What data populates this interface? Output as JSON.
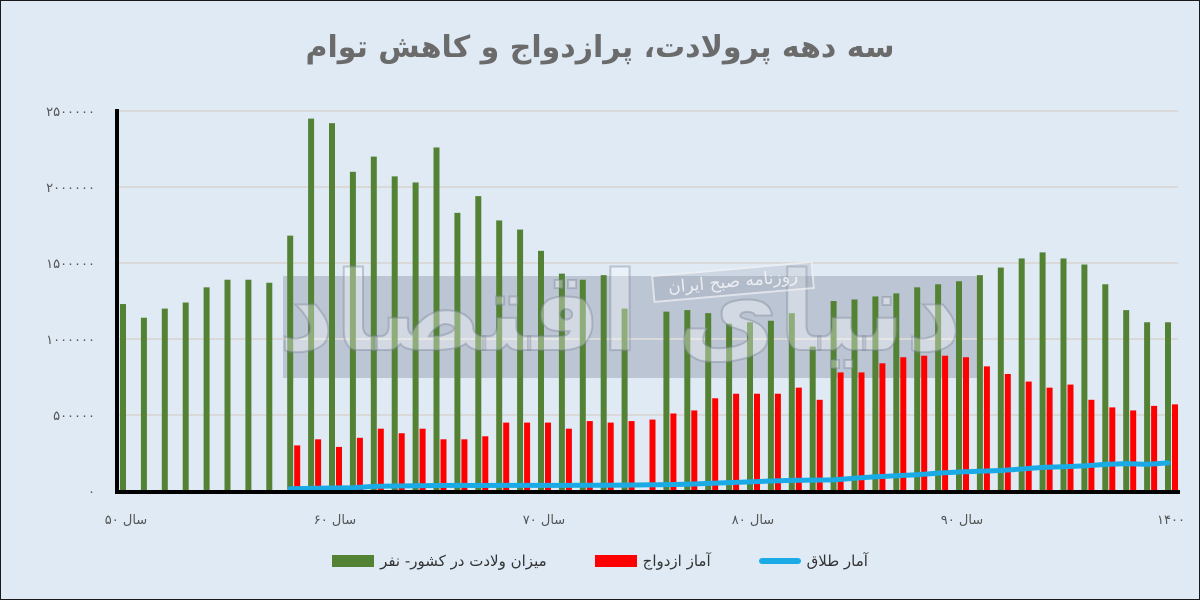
{
  "title": "سه دهه پرولادت، پرازدواج و کاهش توام",
  "watermark": {
    "label": "روزنامه صبح ایران",
    "logo_text": "دنیای اقتصاد"
  },
  "colors": {
    "background": "#dfeaf5",
    "births": "#548235",
    "marriage": "#ff0000",
    "divorce": "#1aabe6",
    "axis": "#000000",
    "grid": "#d9d9d9",
    "title": "#6b6b6b"
  },
  "legend": {
    "births": "میزان ولادت در کشور- نفر",
    "marriage": "آماز ازدواج",
    "divorce": "آمار طلاق"
  },
  "chart_data": {
    "type": "bar",
    "title": "سه دهه پرولادت، پرازدواج و کاهش توام",
    "xlabel": "",
    "ylabel": "",
    "ylim": [
      0,
      2500000
    ],
    "grid": true,
    "legend_position": "bottom",
    "y_ticks": [
      "۰",
      "۵۰۰۰۰۰",
      "۱۰۰۰۰۰۰",
      "۱۵۰۰۰۰۰",
      "۲۰۰۰۰۰۰",
      "۲۵۰۰۰۰۰"
    ],
    "y_tick_values": [
      0,
      500000,
      1000000,
      1500000,
      2000000,
      2500000
    ],
    "x_tick_labels": [
      {
        "index": 0,
        "label": "سال ۵۰"
      },
      {
        "index": 10,
        "label": "سال ۶۰"
      },
      {
        "index": 20,
        "label": "سال ۷۰"
      },
      {
        "index": 30,
        "label": "سال ۸۰"
      },
      {
        "index": 40,
        "label": "سال ۹۰"
      },
      {
        "index": 50,
        "label": "۱۴۰۰"
      }
    ],
    "categories": [
      1350,
      1351,
      1352,
      1353,
      1354,
      1355,
      1356,
      1357,
      1358,
      1359,
      1360,
      1361,
      1362,
      1363,
      1364,
      1365,
      1366,
      1367,
      1368,
      1369,
      1370,
      1371,
      1372,
      1373,
      1374,
      1375,
      1376,
      1377,
      1378,
      1379,
      1380,
      1381,
      1382,
      1383,
      1384,
      1385,
      1386,
      1387,
      1388,
      1389,
      1390,
      1391,
      1392,
      1393,
      1394,
      1395,
      1396,
      1397,
      1398,
      1399,
      1400
    ],
    "series": [
      {
        "name": "میزان ولادت در کشور- نفر",
        "type": "bar",
        "values": [
          1230000,
          1140000,
          1200000,
          1240000,
          1340000,
          1390000,
          1390000,
          1370000,
          1680000,
          2450000,
          2420000,
          2100000,
          2200000,
          2070000,
          2030000,
          2260000,
          1830000,
          1940000,
          1780000,
          1720000,
          1580000,
          1430000,
          1390000,
          1420000,
          1200000,
          null,
          1180000,
          1190000,
          1170000,
          1100000,
          1110000,
          1120000,
          1170000,
          950000,
          1250000,
          1260000,
          1280000,
          1300000,
          1340000,
          1360000,
          1380000,
          1420000,
          1470000,
          1530000,
          1570000,
          1530000,
          1490000,
          1360000,
          1190000,
          1110000,
          1110000
        ]
      },
      {
        "name": "آماز ازدواج",
        "type": "bar",
        "values": [
          null,
          null,
          null,
          null,
          null,
          null,
          null,
          null,
          300000,
          340000,
          290000,
          350000,
          410000,
          380000,
          410000,
          340000,
          340000,
          360000,
          450000,
          450000,
          450000,
          410000,
          460000,
          450000,
          460000,
          470000,
          510000,
          530000,
          610000,
          640000,
          640000,
          640000,
          680000,
          600000,
          780000,
          780000,
          840000,
          880000,
          890000,
          890000,
          880000,
          820000,
          770000,
          720000,
          680000,
          700000,
          600000,
          550000,
          530000,
          560000,
          570000
        ]
      },
      {
        "name": "آمار طلاق",
        "type": "line",
        "values": [
          null,
          null,
          null,
          null,
          null,
          null,
          null,
          null,
          15000,
          17000,
          20000,
          22000,
          30000,
          33000,
          35000,
          36000,
          37000,
          36000,
          37000,
          37000,
          37000,
          37000,
          38000,
          38000,
          39000,
          40000,
          42000,
          45000,
          50000,
          55000,
          60000,
          66000,
          70000,
          72000,
          73000,
          84000,
          94000,
          100000,
          107000,
          118000,
          125000,
          130000,
          135000,
          145000,
          155000,
          160000,
          165000,
          175000,
          180000,
          175000,
          185000
        ]
      }
    ]
  }
}
